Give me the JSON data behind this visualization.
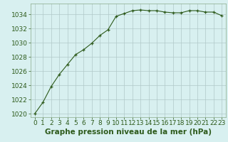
{
  "x": [
    0,
    1,
    2,
    3,
    4,
    5,
    6,
    7,
    8,
    9,
    10,
    11,
    12,
    13,
    14,
    15,
    16,
    17,
    18,
    19,
    20,
    21,
    22,
    23
  ],
  "y": [
    1020.0,
    1021.6,
    1023.8,
    1025.5,
    1026.9,
    1028.3,
    1029.0,
    1029.9,
    1031.0,
    1031.8,
    1033.7,
    1034.1,
    1034.5,
    1034.6,
    1034.5,
    1034.5,
    1034.3,
    1034.2,
    1034.2,
    1034.5,
    1034.5,
    1034.3,
    1034.3,
    1033.8
  ],
  "line_color": "#2d5a1b",
  "marker": "+",
  "marker_size": 3,
  "bg_color": "#d8f0f0",
  "grid_color": "#b0c8c8",
  "xlabel": "Graphe pression niveau de la mer (hPa)",
  "xlabel_color": "#2d5a1b",
  "xlabel_fontsize": 7.5,
  "tick_color": "#2d5a1b",
  "tick_fontsize": 6.5,
  "ylim": [
    1019.5,
    1035.5
  ],
  "yticks": [
    1020,
    1022,
    1024,
    1026,
    1028,
    1030,
    1032,
    1034
  ],
  "xlim": [
    -0.5,
    23.5
  ],
  "xticks": [
    0,
    1,
    2,
    3,
    4,
    5,
    6,
    7,
    8,
    9,
    10,
    11,
    12,
    13,
    14,
    15,
    16,
    17,
    18,
    19,
    20,
    21,
    22,
    23
  ]
}
